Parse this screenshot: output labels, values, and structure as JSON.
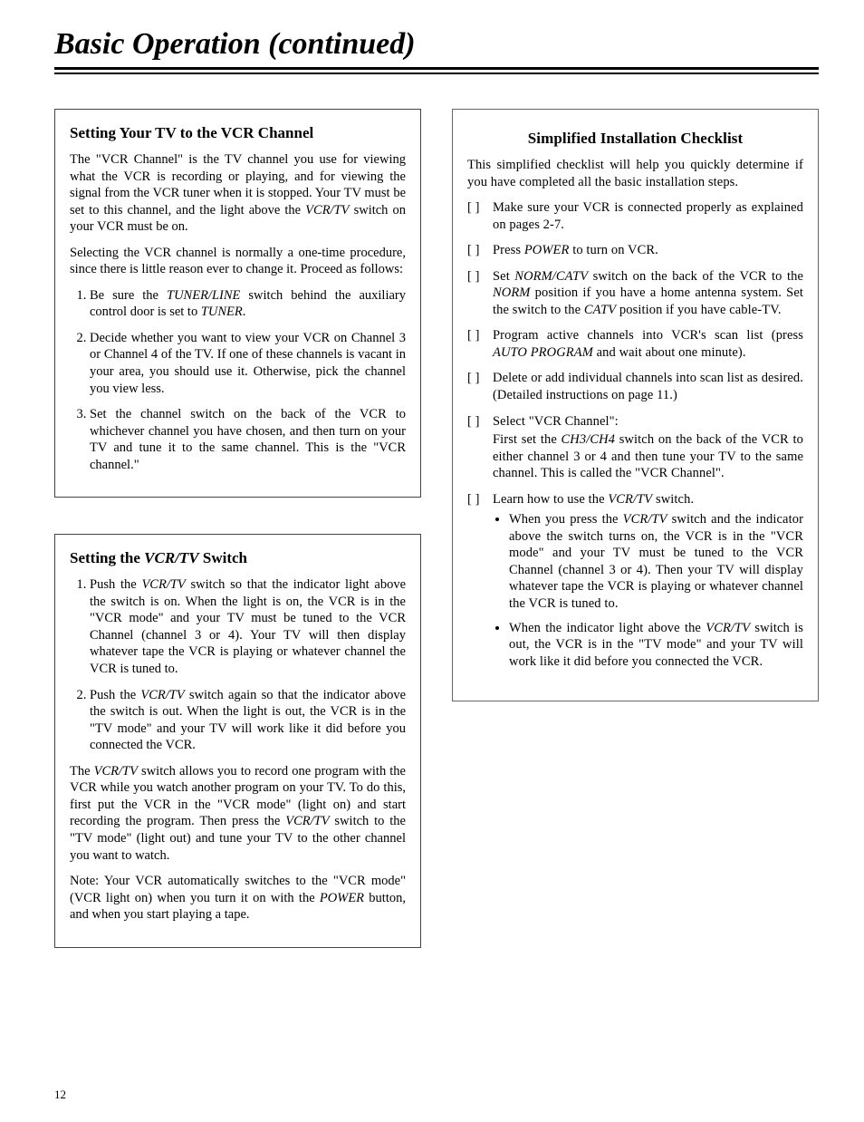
{
  "page_title": "Basic Operation (continued)",
  "page_number": "12",
  "left": {
    "boxA": {
      "heading": "Setting Your TV to the VCR Channel",
      "p1_a": "The \"VCR Channel\" is the TV channel you use for viewing what the VCR is recording or playing, and for viewing the signal from the VCR tuner when it is stopped. Your TV must be set to this channel, and the light above the ",
      "p1_i1": "VCR/TV",
      "p1_b": " switch on your VCR must be on.",
      "p2": "Selecting the VCR channel is normally a one-time procedure, since there is little reason ever to change it. Proceed as follows:",
      "li1_a": "Be sure the ",
      "li1_i1": "TUNER/LINE",
      "li1_b": " switch behind the auxiliary control door is set to ",
      "li1_i2": "TUNER",
      "li1_c": ".",
      "li2": "Decide whether you want to view your VCR on Channel 3 or Channel 4 of the TV. If one of these channels is vacant in your area, you should use it. Otherwise, pick the channel you view less.",
      "li3": "Set the channel switch on the back of the VCR to whichever channel you have chosen, and then turn on your TV and tune it to the same channel. This is the \"VCR channel.\""
    },
    "boxB": {
      "heading_a": "Setting the ",
      "heading_i": "VCR/TV",
      "heading_b": " Switch",
      "li1_a": "Push the ",
      "li1_i1": "VCR/TV",
      "li1_b": " switch so that the indicator light above the switch is on. When the light is on, the VCR is in the \"VCR mode\" and your TV must be tuned to the VCR Channel (channel 3 or 4). Your TV will then display whatever tape the VCR is playing or whatever channel the VCR is tuned to.",
      "li2_a": "Push the ",
      "li2_i1": "VCR/TV",
      "li2_b": " switch again so that the indicator above the switch is out. When the light is out, the VCR is in the \"TV mode\" and your TV will work like it did before you connected the VCR.",
      "p_after_a": "The ",
      "p_after_i1": "VCR/TV",
      "p_after_b": " switch allows you to record one program with the VCR while you watch another program on your TV. To do this, first put the VCR in the \"VCR mode\" (light on) and start recording the program. Then press the ",
      "p_after_i2": "VCR/TV",
      "p_after_c": " switch to the \"TV mode\" (light out) and tune your TV to the other channel you want to watch.",
      "note_a": "Note: Your VCR automatically switches to the \"VCR mode\" (VCR light on) when you turn it on with the ",
      "note_i1": "POWER",
      "note_b": " button, and when you start playing a tape."
    }
  },
  "right": {
    "heading": "Simplified Installation Checklist",
    "intro": "This simplified checklist will help you quickly determine if you have completed all the basic installation steps.",
    "items": [
      {
        "text_a": "Make sure your VCR is connected properly as explained on pages 2-7."
      },
      {
        "text_a": "Press ",
        "i1": "POWER",
        "text_b": " to turn on VCR."
      },
      {
        "text_a": "Set ",
        "i1": "NORM/CATV",
        "text_b": " switch on the back of the VCR to the ",
        "i2": "NORM",
        "text_c": " position if you have a home antenna system. Set the switch to the ",
        "i3": "CATV",
        "text_d": " position if you have cable-TV."
      },
      {
        "text_a": "Program active channels into VCR's scan list (press ",
        "i1": "AUTO PROGRAM",
        "text_b": " and wait about one minute)."
      },
      {
        "text_a": "Delete or add individual channels into scan list as desired. (Detailed instructions on page 11.)"
      },
      {
        "text_a": "Select \"VCR Channel\":",
        "sub_a": "First set the ",
        "sub_i1": "CH3/CH4",
        "sub_b": " switch on the back of the VCR to either channel 3 or 4 and then tune your TV to the same channel. This is called the \"VCR Channel\"."
      },
      {
        "text_a": "Learn how to use the ",
        "i1": "VCR/TV",
        "text_b": " switch.",
        "bullets": [
          {
            "b_a": "When you press the ",
            "b_i1": "VCR/TV",
            "b_b": " switch and the indicator above the switch turns on, the VCR is in the \"VCR mode\" and your TV must be tuned to the VCR Channel (channel 3 or 4). Then your TV will display whatever tape the VCR is playing or whatever channel the VCR is tuned to."
          },
          {
            "b_a": "When the indicator light above the ",
            "b_i1": "VCR/TV",
            "b_b": " switch is out, the VCR is in the \"TV mode\" and your TV will work like it did before you connected the VCR."
          }
        ]
      }
    ],
    "checkbox_glyph": "[  ]"
  }
}
